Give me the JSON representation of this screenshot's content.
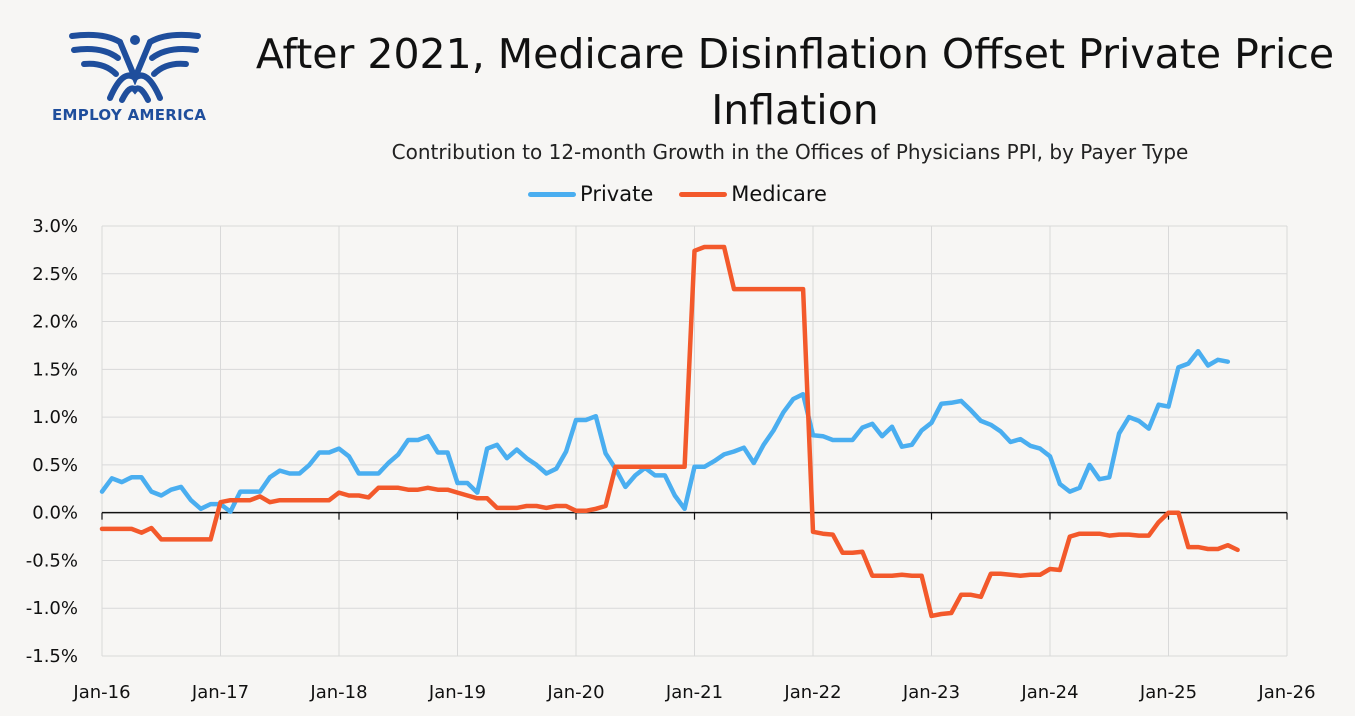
{
  "logo": {
    "text": "EMPLOY AMERICA",
    "color": "#1f4e9c"
  },
  "title": "After 2021, Medicare Disinflation Offset Private Price Inflation",
  "subtitle": "Contribution to 12-month Growth in the Offices of Physicians PPI, by Payer Type",
  "chart_data": {
    "type": "line",
    "title": "After 2021, Medicare Disinflation Offset Private Price Inflation",
    "subtitle": "Contribution to 12-month Growth in the Offices of Physicians PPI, by Payer Type",
    "xlabel": "",
    "ylabel": "",
    "ylim": [
      -1.5,
      3.0
    ],
    "xlim": [
      "2016-01",
      "2026-01"
    ],
    "yticks": [
      "3.0%",
      "2.5%",
      "2.0%",
      "1.5%",
      "1.0%",
      "0.5%",
      "0.0%",
      "-0.5%",
      "-1.0%",
      "-1.5%"
    ],
    "xticks": [
      "Jan-16",
      "Jan-17",
      "Jan-18",
      "Jan-19",
      "Jan-20",
      "Jan-21",
      "Jan-22",
      "Jan-23",
      "Jan-24",
      "Jan-25",
      "Jan-26"
    ],
    "grid": true,
    "legend_position": "top-center",
    "x_start": "2016-01",
    "x_frequency": "monthly",
    "series": [
      {
        "name": "Private",
        "color": "#4aaef0",
        "values": [
          0.22,
          0.36,
          0.32,
          0.37,
          0.37,
          0.22,
          0.18,
          0.24,
          0.27,
          0.13,
          0.04,
          0.09,
          0.09,
          0.01,
          0.22,
          0.22,
          0.22,
          0.37,
          0.44,
          0.41,
          0.41,
          0.5,
          0.63,
          0.63,
          0.67,
          0.59,
          0.41,
          0.41,
          0.41,
          0.52,
          0.61,
          0.76,
          0.76,
          0.8,
          0.63,
          0.63,
          0.31,
          0.31,
          0.21,
          0.67,
          0.71,
          0.57,
          0.66,
          0.57,
          0.5,
          0.41,
          0.46,
          0.64,
          0.97,
          0.97,
          1.01,
          0.62,
          0.46,
          0.27,
          0.39,
          0.47,
          0.39,
          0.39,
          0.18,
          0.04,
          0.48,
          0.48,
          0.54,
          0.61,
          0.64,
          0.68,
          0.52,
          0.71,
          0.86,
          1.05,
          1.19,
          1.24,
          0.81,
          0.8,
          0.76,
          0.76,
          0.76,
          0.89,
          0.93,
          0.8,
          0.9,
          0.69,
          0.71,
          0.86,
          0.94,
          1.14,
          1.15,
          1.17,
          1.07,
          0.96,
          0.92,
          0.85,
          0.74,
          0.77,
          0.7,
          0.67,
          0.59,
          0.3,
          0.22,
          0.26,
          0.5,
          0.35,
          0.37,
          0.83,
          1.0,
          0.96,
          0.88,
          1.13,
          1.11,
          1.52,
          1.56,
          1.69,
          1.54,
          1.6,
          1.58
        ]
      },
      {
        "name": "Medicare",
        "color": "#f3592b",
        "values": [
          -0.17,
          -0.17,
          -0.17,
          -0.17,
          -0.21,
          -0.16,
          -0.28,
          -0.28,
          -0.28,
          -0.28,
          -0.28,
          -0.28,
          0.11,
          0.13,
          0.13,
          0.13,
          0.17,
          0.11,
          0.13,
          0.13,
          0.13,
          0.13,
          0.13,
          0.13,
          0.21,
          0.18,
          0.18,
          0.16,
          0.26,
          0.26,
          0.26,
          0.24,
          0.24,
          0.26,
          0.24,
          0.24,
          0.21,
          0.18,
          0.15,
          0.15,
          0.05,
          0.05,
          0.05,
          0.07,
          0.07,
          0.05,
          0.07,
          0.07,
          0.02,
          0.02,
          0.04,
          0.07,
          0.48,
          0.48,
          0.48,
          0.48,
          0.48,
          0.48,
          0.48,
          0.48,
          2.74,
          2.78,
          2.78,
          2.78,
          2.34,
          2.34,
          2.34,
          2.34,
          2.34,
          2.34,
          2.34,
          2.34,
          -0.2,
          -0.22,
          -0.23,
          -0.42,
          -0.42,
          -0.41,
          -0.66,
          -0.66,
          -0.66,
          -0.65,
          -0.66,
          -0.66,
          -1.08,
          -1.06,
          -1.05,
          -0.86,
          -0.86,
          -0.88,
          -0.64,
          -0.64,
          -0.65,
          -0.66,
          -0.65,
          -0.65,
          -0.59,
          -0.6,
          -0.25,
          -0.22,
          -0.22,
          -0.22,
          -0.24,
          -0.23,
          -0.23,
          -0.24,
          -0.24,
          -0.1,
          0.0,
          0.0,
          -0.36,
          -0.36,
          -0.38,
          -0.38,
          -0.34,
          -0.39
        ]
      }
    ]
  }
}
